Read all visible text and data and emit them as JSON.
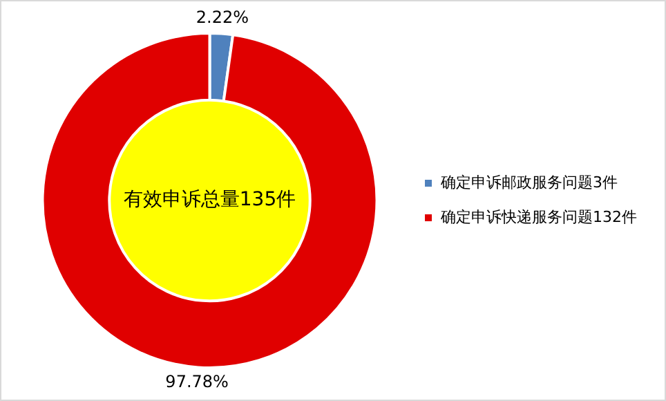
{
  "chart_data": {
    "type": "donut",
    "categories": [
      "确定申诉邮政服务问题3件",
      "确定申诉快递服务问题132件"
    ],
    "values": [
      2.22,
      97.78
    ],
    "colors": [
      "#4f81bd",
      "#e00000"
    ],
    "value_labels": [
      "2.22%",
      "97.78%"
    ],
    "annotations": [
      "有效申诉总量135件"
    ],
    "legend": "right"
  }
}
